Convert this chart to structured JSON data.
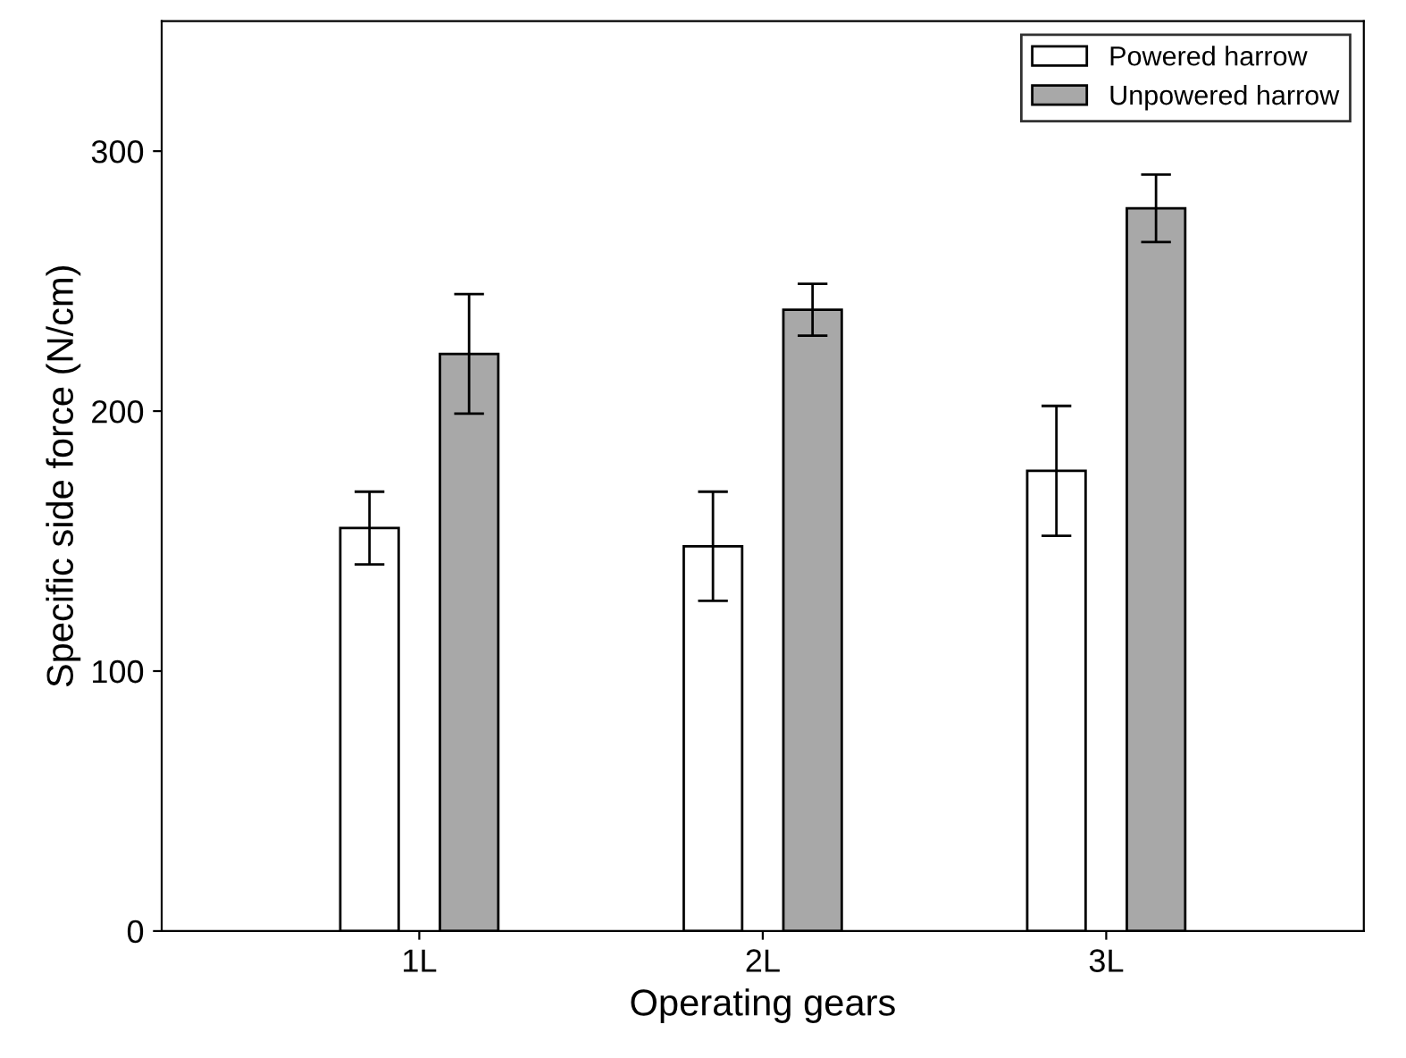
{
  "chart_data": {
    "type": "bar",
    "xlabel": "Operating gears",
    "ylabel": "Specific side force (N/cm)",
    "categories": [
      "1L",
      "2L",
      "3L"
    ],
    "series": [
      {
        "name": "Powered harrow",
        "color": "#ffffff",
        "values": [
          155,
          148,
          177
        ],
        "errors": [
          [
            141,
            169
          ],
          [
            127,
            169
          ],
          [
            152,
            202
          ]
        ]
      },
      {
        "name": "Unpowered harrow",
        "color": "#a8a8a8",
        "values": [
          222,
          239,
          278
        ],
        "errors": [
          [
            199,
            245
          ],
          [
            229,
            249
          ],
          [
            265,
            291
          ]
        ]
      }
    ],
    "ylim": [
      0,
      350
    ],
    "yticks": [
      0,
      100,
      200,
      300
    ],
    "grid": false,
    "legend": "top right"
  }
}
